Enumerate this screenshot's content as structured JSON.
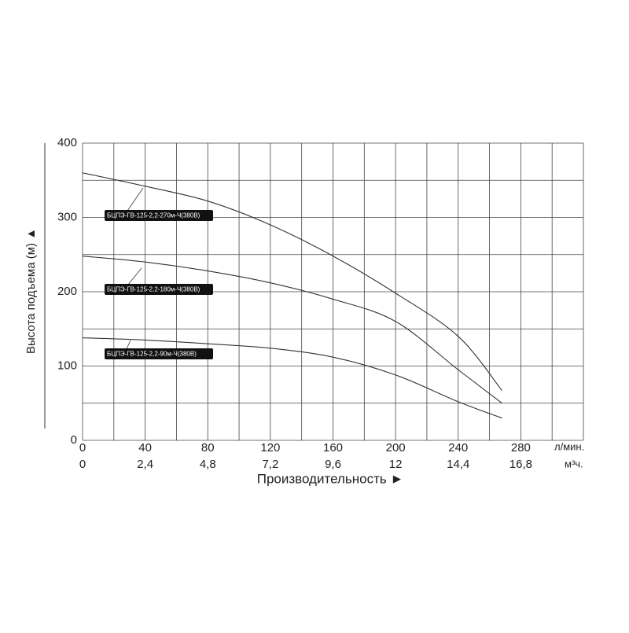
{
  "chart_data": {
    "type": "line",
    "y_label": "Высота подъема (м) ▲",
    "x_label": "Производительность ►",
    "x_unit": "л/мин.",
    "x2_unit": "м³ч.",
    "x": [
      0,
      40,
      80,
      120,
      160,
      200,
      240,
      268
    ],
    "series": [
      {
        "name": "БЦПЭ-ГВ-125-2,2-270м-Ч(380В)",
        "color": "#333333",
        "values": [
          360,
          342,
          322,
          290,
          248,
          198,
          140,
          67
        ]
      },
      {
        "name": "БЦПЭ-ГВ-125-2,2-180м-Ч(380В)",
        "color": "#333333",
        "values": [
          248,
          240,
          228,
          212,
          190,
          160,
          95,
          50
        ]
      },
      {
        "name": "БЦПЭ-ГВ-125-2,2-90м-Ч(380В)",
        "color": "#333333",
        "values": [
          138,
          135,
          130,
          124,
          112,
          88,
          52,
          30
        ]
      }
    ],
    "xlim": [
      0,
      320
    ],
    "xticks": [
      0,
      40,
      80,
      120,
      160,
      200,
      240,
      280
    ],
    "x2lim": [
      0,
      19.2
    ],
    "x2ticks": [
      0,
      {
        "value": 2.4,
        "label": "2,4"
      },
      {
        "value": 4.8,
        "label": "4,8"
      },
      {
        "value": 7.2,
        "label": "7,2"
      },
      {
        "value": 9.6,
        "label": "9,6"
      },
      12,
      {
        "value": 14.4,
        "label": "14,4"
      },
      {
        "value": 16.8,
        "label": "16,8"
      }
    ],
    "ylim": [
      0,
      400
    ],
    "yticks": [
      0,
      100,
      200,
      300,
      400
    ],
    "xgrid": [
      0,
      20,
      40,
      60,
      80,
      100,
      120,
      140,
      160,
      180,
      200,
      220,
      240,
      260,
      280,
      300,
      320
    ],
    "ygrid": [
      0,
      50,
      100,
      150,
      200,
      250,
      300,
      350,
      400
    ]
  }
}
